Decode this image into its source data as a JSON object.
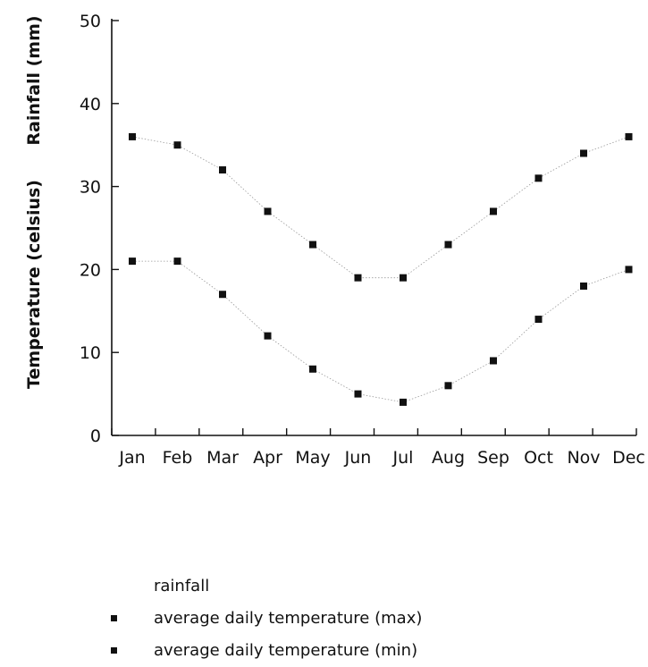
{
  "chart_data": {
    "type": "scatter",
    "title": "",
    "xlabel": "",
    "ylabels": [
      "Rainfall (mm)",
      "Temperature (celsius)"
    ],
    "categories": [
      "Jan",
      "Feb",
      "Mar",
      "Apr",
      "May",
      "Jun",
      "Jul",
      "Aug",
      "Sep",
      "Oct",
      "Nov",
      "Dec"
    ],
    "yticks": [
      0,
      10,
      20,
      30,
      40,
      50
    ],
    "ylim": [
      0,
      50
    ],
    "grid": false,
    "legend_position": "bottom",
    "series": [
      {
        "name": "average daily temperature (max)",
        "values": [
          36,
          35,
          32,
          27,
          23,
          19,
          19,
          23,
          27,
          31,
          34,
          36
        ],
        "color": "#111111"
      },
      {
        "name": "average daily temperature (min)",
        "values": [
          21,
          21,
          17,
          12,
          8,
          5,
          4,
          6,
          9,
          14,
          18,
          20
        ],
        "color": "#111111"
      }
    ],
    "legend": [
      {
        "label": "rainfall",
        "marker": "none"
      },
      {
        "label": "average daily temperature (max)",
        "marker": "square"
      },
      {
        "label": "average daily temperature (min)",
        "marker": "square"
      }
    ]
  }
}
